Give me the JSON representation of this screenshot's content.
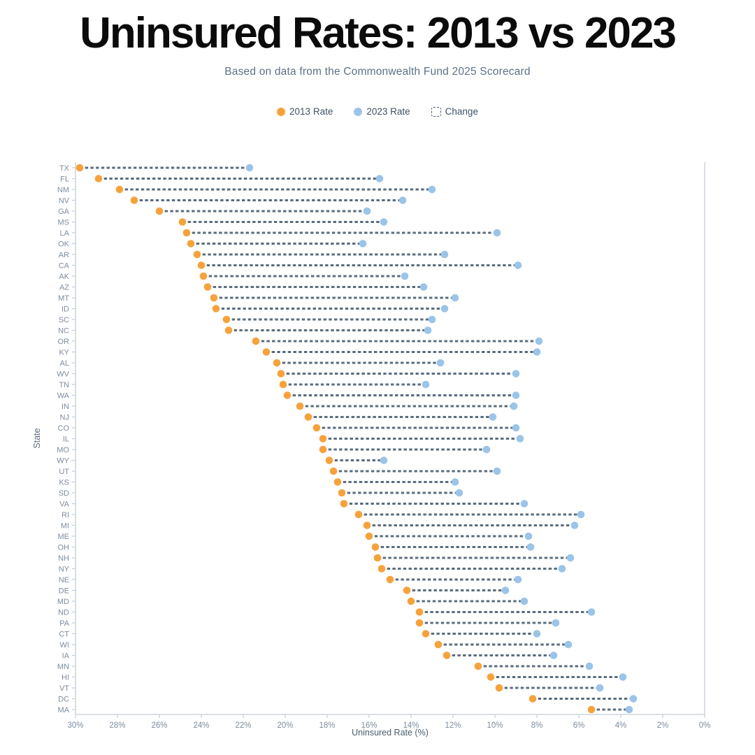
{
  "header": {
    "title": "Uninsured Rates: 2013 vs 2023",
    "subtitle": "Based on data from the Commonwealth Fund 2025 Scorecard"
  },
  "legend": {
    "items": [
      {
        "label": "2013 Rate",
        "swatch": "dot",
        "color": "#F6A23C"
      },
      {
        "label": "2023 Rate",
        "swatch": "dot",
        "color": "#9AC4E8"
      },
      {
        "label": "Change",
        "swatch": "dashed-box",
        "color": "#44576b"
      }
    ]
  },
  "chart_data": {
    "type": "scatter",
    "subtype": "dumbbell",
    "title": "Uninsured Rates: 2013 vs 2023",
    "xlabel": "Uninsured Rate (%)",
    "ylabel": "State",
    "x_axis": {
      "min": 0,
      "max": 30,
      "reversed": true,
      "ticks": [
        {
          "value": 30,
          "label": "30%"
        },
        {
          "value": 28,
          "label": "28%"
        },
        {
          "value": 26,
          "label": "26%"
        },
        {
          "value": 24,
          "label": "24%"
        },
        {
          "value": 22,
          "label": "22%"
        },
        {
          "value": 20,
          "label": "20%"
        },
        {
          "value": 18,
          "label": "18%"
        },
        {
          "value": 16,
          "label": "16%"
        },
        {
          "value": 14,
          "label": "14%"
        },
        {
          "value": 12,
          "label": "12%"
        },
        {
          "value": 10,
          "label": "10%"
        },
        {
          "value": 8,
          "label": "8%"
        },
        {
          "value": 6,
          "label": "6%"
        },
        {
          "value": 4,
          "label": "4%"
        },
        {
          "value": 2,
          "label": "2%"
        },
        {
          "value": 0,
          "label": "0%"
        }
      ]
    },
    "series_names": [
      "2013 Rate",
      "2023 Rate"
    ],
    "colors": {
      "rate2013": "#F6A23C",
      "rate2023": "#9AC4E8",
      "connector": "#5a6c7e",
      "axis": "#c3ced8",
      "tick_label": "#7c8c9e",
      "axis_title": "#4a5b6e"
    },
    "states": [
      {
        "state": "TX",
        "rate_2013": 29.8,
        "rate_2023": 21.7
      },
      {
        "state": "FL",
        "rate_2013": 28.9,
        "rate_2023": 15.5
      },
      {
        "state": "NM",
        "rate_2013": 27.9,
        "rate_2023": 13.0
      },
      {
        "state": "NV",
        "rate_2013": 27.2,
        "rate_2023": 14.4
      },
      {
        "state": "GA",
        "rate_2013": 26.0,
        "rate_2023": 16.1
      },
      {
        "state": "MS",
        "rate_2013": 24.9,
        "rate_2023": 15.3
      },
      {
        "state": "LA",
        "rate_2013": 24.7,
        "rate_2023": 9.9
      },
      {
        "state": "OK",
        "rate_2013": 24.5,
        "rate_2023": 16.3
      },
      {
        "state": "AR",
        "rate_2013": 24.2,
        "rate_2023": 12.4
      },
      {
        "state": "CA",
        "rate_2013": 24.0,
        "rate_2023": 8.9
      },
      {
        "state": "AK",
        "rate_2013": 23.9,
        "rate_2023": 14.3
      },
      {
        "state": "AZ",
        "rate_2013": 23.7,
        "rate_2023": 13.4
      },
      {
        "state": "MT",
        "rate_2013": 23.4,
        "rate_2023": 11.9
      },
      {
        "state": "ID",
        "rate_2013": 23.3,
        "rate_2023": 12.4
      },
      {
        "state": "SC",
        "rate_2013": 22.8,
        "rate_2023": 13.0
      },
      {
        "state": "NC",
        "rate_2013": 22.7,
        "rate_2023": 13.2
      },
      {
        "state": "OR",
        "rate_2013": 21.4,
        "rate_2023": 7.9
      },
      {
        "state": "KY",
        "rate_2013": 20.9,
        "rate_2023": 8.0
      },
      {
        "state": "AL",
        "rate_2013": 20.4,
        "rate_2023": 12.6
      },
      {
        "state": "WV",
        "rate_2013": 20.2,
        "rate_2023": 9.0
      },
      {
        "state": "TN",
        "rate_2013": 20.1,
        "rate_2023": 13.3
      },
      {
        "state": "WA",
        "rate_2013": 19.9,
        "rate_2023": 9.0
      },
      {
        "state": "IN",
        "rate_2013": 19.3,
        "rate_2023": 9.1
      },
      {
        "state": "NJ",
        "rate_2013": 18.9,
        "rate_2023": 10.1
      },
      {
        "state": "CO",
        "rate_2013": 18.5,
        "rate_2023": 9.0
      },
      {
        "state": "IL",
        "rate_2013": 18.2,
        "rate_2023": 8.8
      },
      {
        "state": "MO",
        "rate_2013": 18.2,
        "rate_2023": 10.4
      },
      {
        "state": "WY",
        "rate_2013": 17.9,
        "rate_2023": 15.3
      },
      {
        "state": "UT",
        "rate_2013": 17.7,
        "rate_2023": 9.9
      },
      {
        "state": "KS",
        "rate_2013": 17.5,
        "rate_2023": 11.9
      },
      {
        "state": "SD",
        "rate_2013": 17.3,
        "rate_2023": 11.7
      },
      {
        "state": "VA",
        "rate_2013": 17.2,
        "rate_2023": 8.6
      },
      {
        "state": "RI",
        "rate_2013": 16.5,
        "rate_2023": 5.9
      },
      {
        "state": "MI",
        "rate_2013": 16.1,
        "rate_2023": 6.2
      },
      {
        "state": "ME",
        "rate_2013": 16.0,
        "rate_2023": 8.4
      },
      {
        "state": "OH",
        "rate_2013": 15.7,
        "rate_2023": 8.3
      },
      {
        "state": "NH",
        "rate_2013": 15.6,
        "rate_2023": 6.4
      },
      {
        "state": "NY",
        "rate_2013": 15.4,
        "rate_2023": 6.8
      },
      {
        "state": "NE",
        "rate_2013": 15.0,
        "rate_2023": 8.9
      },
      {
        "state": "DE",
        "rate_2013": 14.2,
        "rate_2023": 9.5
      },
      {
        "state": "MD",
        "rate_2013": 14.0,
        "rate_2023": 8.6
      },
      {
        "state": "ND",
        "rate_2013": 13.6,
        "rate_2023": 5.4
      },
      {
        "state": "PA",
        "rate_2013": 13.6,
        "rate_2023": 7.1
      },
      {
        "state": "CT",
        "rate_2013": 13.3,
        "rate_2023": 8.0
      },
      {
        "state": "WI",
        "rate_2013": 12.7,
        "rate_2023": 6.5
      },
      {
        "state": "IA",
        "rate_2013": 12.3,
        "rate_2023": 7.2
      },
      {
        "state": "MN",
        "rate_2013": 10.8,
        "rate_2023": 5.5
      },
      {
        "state": "HI",
        "rate_2013": 10.2,
        "rate_2023": 3.9
      },
      {
        "state": "VT",
        "rate_2013": 9.8,
        "rate_2023": 5.0
      },
      {
        "state": "DC",
        "rate_2013": 8.2,
        "rate_2023": 3.4
      },
      {
        "state": "MA",
        "rate_2013": 5.4,
        "rate_2023": 3.6
      }
    ]
  }
}
